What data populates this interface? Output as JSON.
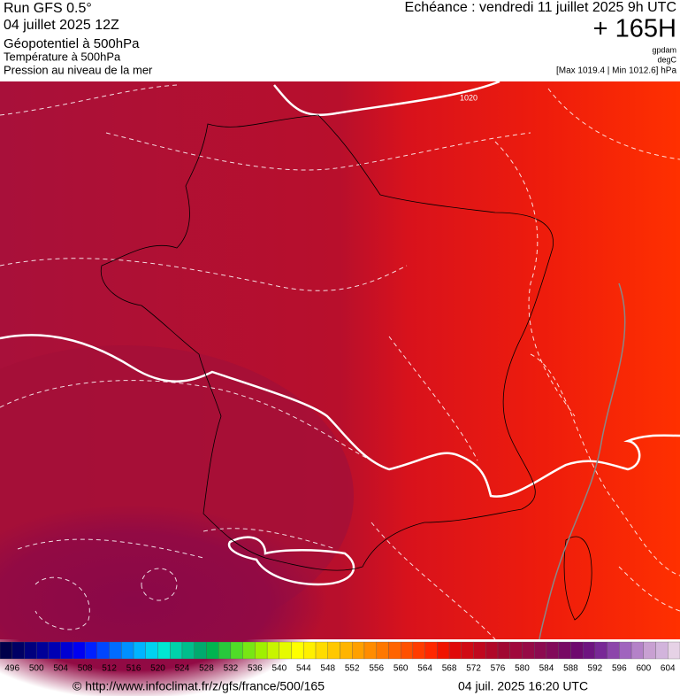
{
  "header": {
    "run": "Run GFS 0.5°",
    "run_date": "04 juillet 2025 12Z",
    "field": "Géopotentiel à 500hPa",
    "field2": "Température à 500hPa",
    "field3": "Pression au niveau de la mer",
    "valid": "Echéance : vendredi 11 juillet 2025 9h UTC",
    "lead": "+ 165H",
    "unit1": "gpdam",
    "unit2": "degC",
    "pressure_range": "[Max 1019.4 | Min 1012.6] hPa"
  },
  "map": {
    "contour_label": "1020"
  },
  "colorbar": {
    "labels": [
      496,
      500,
      504,
      508,
      512,
      516,
      520,
      524,
      528,
      532,
      536,
      540,
      544,
      548,
      552,
      556,
      560,
      564,
      568,
      572,
      576,
      580,
      584,
      588,
      592,
      596,
      600,
      604
    ],
    "colors": [
      "#00004a",
      "#000064",
      "#00007e",
      "#000098",
      "#0000b4",
      "#0000d2",
      "#0000f0",
      "#0020ff",
      "#0046ff",
      "#006cff",
      "#0090ff",
      "#00b4ff",
      "#00d2f0",
      "#00e6d2",
      "#00d2aa",
      "#00be8c",
      "#00aa6e",
      "#00b450",
      "#28c83c",
      "#50dc28",
      "#78e614",
      "#a0f000",
      "#c8f500",
      "#e6fa00",
      "#ffff00",
      "#fff000",
      "#ffdc00",
      "#ffc800",
      "#ffb400",
      "#ffa000",
      "#ff8c00",
      "#ff7800",
      "#ff6400",
      "#ff5000",
      "#ff3c00",
      "#ff2800",
      "#f01400",
      "#e00a0a",
      "#d00a14",
      "#c0081e",
      "#b00828",
      "#a00832",
      "#a0083c",
      "#960a46",
      "#8c0a50",
      "#820a5a",
      "#780a64",
      "#6e0a6e",
      "#6e1480",
      "#782896",
      "#8c46aa",
      "#a064be",
      "#b482c8",
      "#c8a0d2",
      "#d2b4dc",
      "#e6d2e6"
    ]
  },
  "footer": {
    "url": "© http://www.infoclimat.fr/z/gfs/france/500/165",
    "timestamp": "04 juil. 2025 16:20 UTC"
  }
}
